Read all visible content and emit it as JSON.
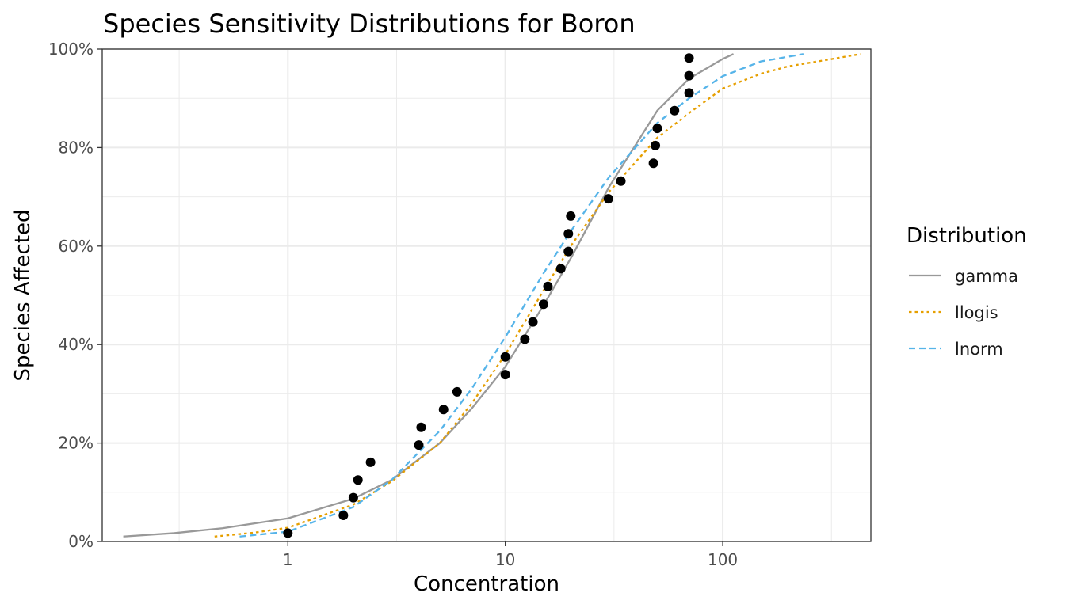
{
  "chart_data": {
    "type": "line",
    "title": "Species Sensitivity Distributions for Boron",
    "xlabel": "Concentration",
    "ylabel": "Species Affected",
    "x_scale": "log10",
    "xlim": [
      0.14,
      480
    ],
    "ylim": [
      0,
      1
    ],
    "x_ticks": [
      {
        "value": 1,
        "label": "1"
      },
      {
        "value": 10,
        "label": "10"
      },
      {
        "value": 100,
        "label": "100"
      }
    ],
    "y_ticks": [
      {
        "value": 0,
        "label": "0%"
      },
      {
        "value": 0.2,
        "label": "20%"
      },
      {
        "value": 0.4,
        "label": "40%"
      },
      {
        "value": 0.6,
        "label": "60%"
      },
      {
        "value": 0.8,
        "label": "80%"
      },
      {
        "value": 1.0,
        "label": "100%"
      }
    ],
    "grid": true,
    "legend": {
      "title": "Distribution",
      "position": "right"
    },
    "series": [
      {
        "name": "gamma",
        "style": "solid",
        "color": "#999999",
        "x": [
          0.175,
          0.3,
          0.5,
          1,
          2,
          3,
          5,
          7,
          10,
          15,
          20,
          30,
          50,
          70,
          100,
          112
        ],
        "y": [
          0.01,
          0.017,
          0.027,
          0.047,
          0.087,
          0.125,
          0.2,
          0.27,
          0.355,
          0.48,
          0.575,
          0.72,
          0.875,
          0.94,
          0.98,
          0.99
        ]
      },
      {
        "name": "llogis",
        "style": "dotted",
        "color": "#E69F00",
        "x": [
          0.46,
          0.7,
          1,
          2,
          3,
          5,
          7,
          10,
          15,
          20,
          30,
          50,
          70,
          100,
          150,
          200,
          300,
          430
        ],
        "y": [
          0.01,
          0.018,
          0.028,
          0.075,
          0.122,
          0.2,
          0.28,
          0.38,
          0.51,
          0.6,
          0.71,
          0.82,
          0.87,
          0.92,
          0.95,
          0.965,
          0.978,
          0.99
        ]
      },
      {
        "name": "lnorm",
        "style": "dashed",
        "color": "#56B4E9",
        "x": [
          0.6,
          1,
          2,
          3,
          5,
          7,
          10,
          15,
          20,
          30,
          50,
          70,
          100,
          150,
          235
        ],
        "y": [
          0.01,
          0.02,
          0.07,
          0.125,
          0.225,
          0.31,
          0.415,
          0.545,
          0.63,
          0.74,
          0.85,
          0.9,
          0.945,
          0.975,
          0.99
        ]
      }
    ],
    "points": {
      "color": "#000000",
      "x": [
        1,
        1.8,
        2,
        2.1,
        2.4,
        4,
        4.1,
        5.2,
        6,
        10,
        10,
        12.3,
        13.4,
        15,
        15.7,
        18,
        19.5,
        19.5,
        20,
        29.8,
        34,
        48,
        49,
        50,
        60,
        70,
        70,
        70
      ],
      "y": [
        0.017,
        0.053,
        0.089,
        0.125,
        0.161,
        0.196,
        0.232,
        0.268,
        0.304,
        0.339,
        0.375,
        0.411,
        0.446,
        0.482,
        0.518,
        0.554,
        0.589,
        0.625,
        0.661,
        0.696,
        0.732,
        0.768,
        0.804,
        0.839,
        0.875,
        0.911,
        0.946,
        0.982
      ]
    }
  }
}
